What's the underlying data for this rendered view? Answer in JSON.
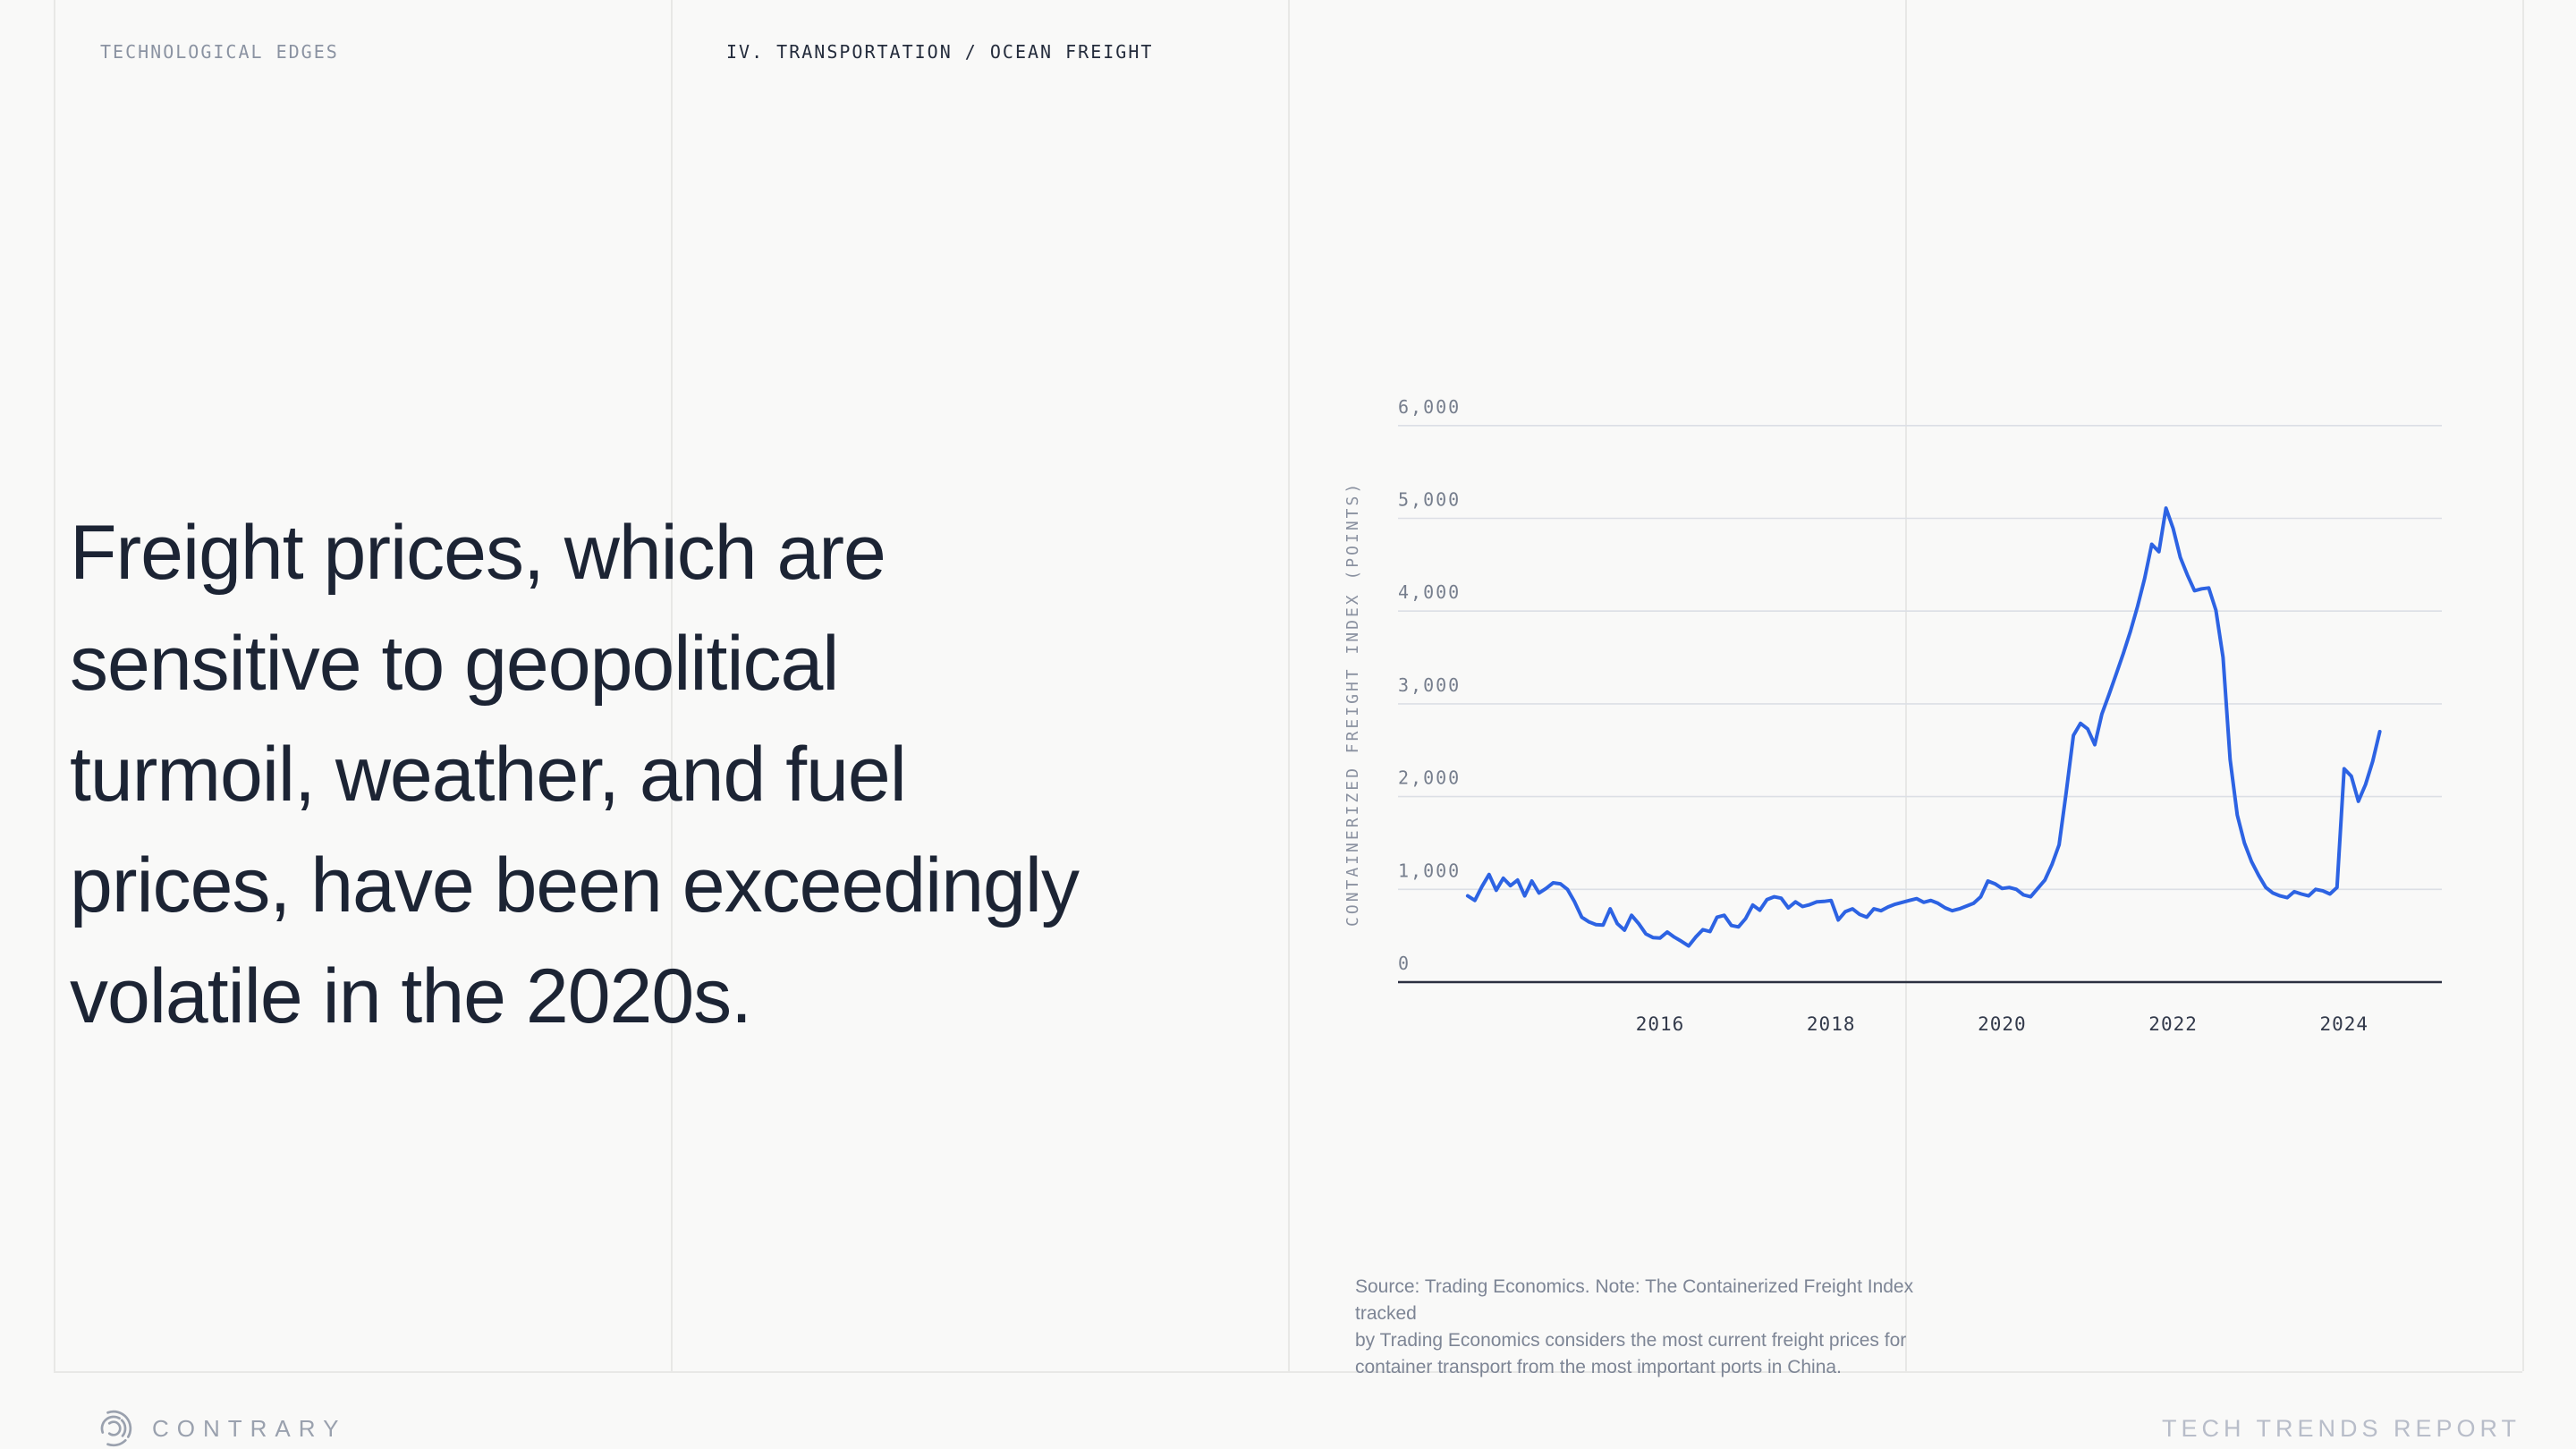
{
  "header": {
    "left_label": "TECHNOLOGICAL EDGES",
    "section_label": "IV. TRANSPORTATION / OCEAN FREIGHT"
  },
  "headline": {
    "lines": [
      "Freight prices, which are",
      "sensitive to geopolitical",
      "turmoil, weather, and fuel",
      "prices, have been exceedingly",
      "volatile in the 2020s."
    ]
  },
  "chart_data": {
    "type": "line",
    "title": "",
    "xlabel": "",
    "ylabel": "CONTAINERIZED FREIGHT INDEX (POINTS)",
    "ylim": [
      0,
      6000
    ],
    "grid": "horizontal",
    "legend_position": "none",
    "line_color": "#2d63e3",
    "y_ticks": [
      {
        "label": "6,000",
        "value": 6000
      },
      {
        "label": "5,000",
        "value": 5000
      },
      {
        "label": "4,000",
        "value": 4000
      },
      {
        "label": "3,000",
        "value": 3000
      },
      {
        "label": "2,000",
        "value": 2000
      },
      {
        "label": "1,000",
        "value": 1000
      },
      {
        "label": "0",
        "value": 0
      }
    ],
    "x_ticks": [
      {
        "label": "2016",
        "value": 2016
      },
      {
        "label": "2018",
        "value": 2018
      },
      {
        "label": "2020",
        "value": 2020
      },
      {
        "label": "2022",
        "value": 2022
      },
      {
        "label": "2024",
        "value": 2024
      }
    ],
    "series": [
      {
        "name": "Containerized Freight Index",
        "start": "2013-10",
        "frequency": "monthly",
        "values": [
          930,
          880,
          1030,
          1160,
          990,
          1120,
          1040,
          1100,
          930,
          1090,
          960,
          1010,
          1070,
          1060,
          1000,
          865,
          700,
          650,
          620,
          615,
          790,
          630,
          560,
          720,
          630,
          520,
          480,
          475,
          540,
          485,
          440,
          390,
          485,
          565,
          545,
          700,
          720,
          610,
          595,
          685,
          830,
          775,
          890,
          920,
          905,
          800,
          865,
          815,
          835,
          865,
          870,
          880,
          670,
          760,
          790,
          730,
          700,
          790,
          770,
          810,
          840,
          860,
          880,
          900,
          860,
          880,
          850,
          800,
          770,
          790,
          820,
          850,
          920,
          1090,
          1060,
          1010,
          1020,
          1000,
          940,
          920,
          1010,
          1100,
          1270,
          1480,
          2050,
          2660,
          2790,
          2730,
          2560,
          2890,
          3100,
          3320,
          3540,
          3780,
          4050,
          4350,
          4720,
          4640,
          5110,
          4890,
          4580,
          4390,
          4220,
          4240,
          4250,
          4010,
          3500,
          2400,
          1800,
          1500,
          1300,
          1150,
          1020,
          960,
          930,
          910,
          975,
          950,
          930,
          1000,
          985,
          950,
          1020,
          2300,
          2220,
          1950,
          2130,
          2380,
          2700
        ]
      }
    ]
  },
  "source_note": {
    "lines": [
      "Source: Trading Economics. Note: The Containerized Freight Index tracked",
      "by Trading Economics considers the most current freight prices for",
      "container transport from the most important ports in China."
    ]
  },
  "footer": {
    "brand": "CONTRARY",
    "report_title": "TECH TRENDS REPORT"
  },
  "colors": {
    "background": "#f9f9f8",
    "divider": "#e8e8e6",
    "gridline": "#dcdfe5",
    "axis": "#2b3040",
    "line": "#2d63e3",
    "headline_text": "#1c2434",
    "header_dark": "#242c3c",
    "header_gray": "#8b93a2",
    "tick_gray": "#767e8d",
    "source_gray": "#7d8595",
    "brand_gray": "#9aa1ae",
    "report_gray": "#b8bdc9"
  }
}
